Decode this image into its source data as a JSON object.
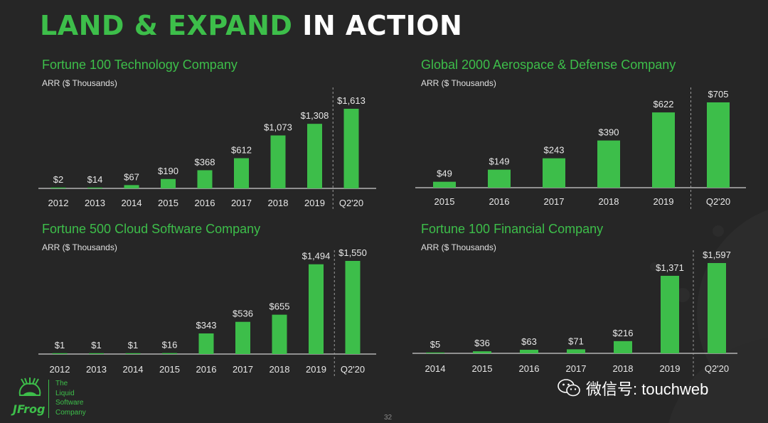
{
  "headline": {
    "green": "LAND & EXPAND",
    "white": "IN ACTION"
  },
  "colors": {
    "accent": "#3dbe4a",
    "bar": "#3dbe4a",
    "background": "#262626",
    "text": "#e8e8e8"
  },
  "chart_data": [
    {
      "type": "bar",
      "title": "Fortune 100 Technology Company",
      "ylabel": "ARR ($ Thousands)",
      "categories": [
        "2012",
        "2013",
        "2014",
        "2015",
        "2016",
        "2017",
        "2018",
        "2019",
        "Q2'20"
      ],
      "values": [
        2,
        14,
        67,
        190,
        368,
        612,
        1073,
        1308,
        1613
      ],
      "labels": [
        "$2",
        "$14",
        "$67",
        "$190",
        "$368",
        "$612",
        "$1,073",
        "$1,308",
        "$1,613"
      ],
      "ylim": [
        0,
        1613
      ],
      "separator_before_last": true
    },
    {
      "type": "bar",
      "title": "Global 2000 Aerospace & Defense Company",
      "ylabel": "ARR ($ Thousands)",
      "categories": [
        "2015",
        "2016",
        "2017",
        "2018",
        "2019",
        "Q2'20"
      ],
      "values": [
        49,
        149,
        243,
        390,
        622,
        705
      ],
      "labels": [
        "$49",
        "$149",
        "$243",
        "$390",
        "$622",
        "$705"
      ],
      "ylim": [
        0,
        705
      ],
      "separator_before_last": true
    },
    {
      "type": "bar",
      "title": "Fortune 500 Cloud Software Company",
      "ylabel": "ARR ($ Thousands)",
      "categories": [
        "2012",
        "2013",
        "2014",
        "2015",
        "2016",
        "2017",
        "2018",
        "2019",
        "Q2'20"
      ],
      "values": [
        1,
        1,
        1,
        16,
        343,
        536,
        655,
        1494,
        1550
      ],
      "labels": [
        "$1",
        "$1",
        "$1",
        "$16",
        "$343",
        "$536",
        "$655",
        "$1,494",
        "$1,550"
      ],
      "ylim": [
        0,
        1550
      ],
      "separator_before_last": true
    },
    {
      "type": "bar",
      "title": "Fortune 100 Financial Company",
      "ylabel": "ARR ($ Thousands)",
      "categories": [
        "2014",
        "2015",
        "2016",
        "2017",
        "2018",
        "2019",
        "Q2'20"
      ],
      "values": [
        5,
        36,
        63,
        71,
        216,
        1371,
        1597
      ],
      "labels": [
        "$5",
        "$36",
        "$63",
        "$71",
        "$216",
        "$1,371",
        "$1,597"
      ],
      "ylim": [
        0,
        1597
      ],
      "separator_before_last": true
    }
  ],
  "logo": {
    "wordmark": "JFrog",
    "tagline": [
      "The",
      "Liquid",
      "Software",
      "Company"
    ],
    "icon": "frog-logo-icon"
  },
  "page_number": "32",
  "watermark": {
    "icon": "wechat-icon",
    "text": "微信号: touchweb"
  }
}
